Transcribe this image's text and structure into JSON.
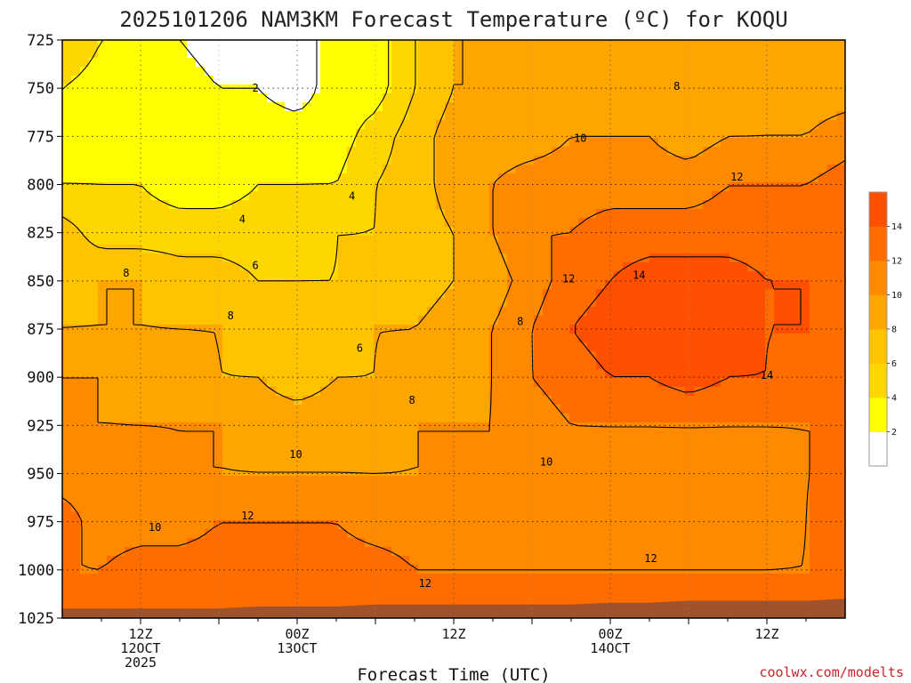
{
  "chart_data": {
    "type": "heatmap",
    "title": "2025101206 NAM3KM Forecast Temperature (ºC) for KOQU",
    "xlabel": "Forecast Time (UTC)",
    "ylabel": "",
    "credit": "coolwx.com/modelts",
    "y_levels": [
      725,
      750,
      775,
      800,
      825,
      850,
      875,
      900,
      925,
      950,
      975,
      1000,
      1025
    ],
    "y_ticks": [
      "725",
      "750",
      "775",
      "800",
      "825",
      "850",
      "875",
      "900",
      "925",
      "950",
      "975",
      "1000",
      "1025"
    ],
    "ylim": [
      725,
      1025
    ],
    "xlim_hours": [
      0,
      60
    ],
    "x_ticks": [
      {
        "hour": 6,
        "line1": "12Z",
        "line2": "12OCT",
        "line3": "2025"
      },
      {
        "hour": 18,
        "line1": "00Z",
        "line2": "13OCT",
        "line3": ""
      },
      {
        "hour": 30,
        "line1": "12Z",
        "line2": "",
        "line3": ""
      },
      {
        "hour": 42,
        "line1": "00Z",
        "line2": "14OCT",
        "line3": ""
      },
      {
        "hour": 54,
        "line1": "12Z",
        "line2": "",
        "line3": ""
      }
    ],
    "grid": true,
    "legend_position": "right",
    "levels": [
      0,
      2,
      4,
      6,
      8,
      10,
      12,
      14,
      16
    ],
    "colorbar_labels": [
      "2",
      "4",
      "6",
      "8",
      "10",
      "12",
      "14"
    ],
    "colors": [
      "#ffffff",
      "#ffff00",
      "#ffd700",
      "#ffc400",
      "#ffa500",
      "#ff8a00",
      "#ff6d00",
      "#ff4f00"
    ],
    "terrain_color": "#a0522d",
    "forecast_hours": [
      0,
      3,
      6,
      9,
      12,
      15,
      18,
      21,
      24,
      27,
      30,
      33,
      36,
      39,
      42,
      45,
      48,
      51,
      54,
      57,
      60
    ],
    "temperature_grid": [
      [
        6,
        4,
        3,
        2,
        1,
        1,
        1,
        3,
        3,
        6,
        8,
        8,
        8,
        9,
        9,
        8,
        8,
        8,
        8,
        8,
        9
      ],
      [
        4,
        3,
        3,
        3,
        2,
        2,
        1,
        3,
        3,
        6,
        8,
        8,
        9,
        9,
        9,
        9,
        8,
        8,
        9,
        9,
        9
      ],
      [
        3,
        3,
        3,
        3,
        3,
        3,
        3,
        3,
        5,
        7,
        9,
        9,
        9,
        10,
        10,
        10,
        9,
        10,
        10,
        10,
        11
      ],
      [
        4,
        4,
        4,
        3,
        3,
        4,
        4,
        4,
        6,
        7,
        9,
        10,
        11,
        11,
        11,
        11,
        11,
        12,
        12,
        12,
        13
      ],
      [
        7,
        5,
        5,
        5,
        5,
        5,
        5,
        6,
        6,
        7,
        8,
        10,
        12,
        12,
        13,
        13,
        13,
        13,
        13,
        13,
        13
      ],
      [
        7,
        8,
        8,
        7,
        7,
        6,
        6,
        6,
        7,
        7,
        8,
        9,
        11,
        13,
        14,
        15,
        15,
        15,
        14,
        14,
        14
      ],
      [
        8,
        8,
        8,
        8,
        8,
        7,
        7,
        7,
        8,
        8,
        9,
        10,
        12,
        14,
        15,
        15,
        15,
        15,
        14,
        14,
        13
      ],
      [
        10,
        10,
        9,
        9,
        8,
        8,
        7,
        8,
        8,
        9,
        9,
        10,
        12,
        13,
        14,
        14,
        15,
        14,
        14,
        13,
        13
      ],
      [
        10,
        10,
        10,
        10,
        10,
        9,
        9,
        9,
        9,
        10,
        10,
        10,
        11,
        12,
        12,
        12,
        12,
        12,
        12,
        12,
        12
      ],
      [
        11,
        11,
        11,
        10,
        10,
        10,
        10,
        10,
        10,
        10,
        10,
        10,
        11,
        11,
        11,
        11,
        11,
        11,
        11,
        12,
        12
      ],
      [
        13,
        11,
        11,
        11,
        12,
        12,
        12,
        12,
        11,
        11,
        11,
        11,
        11,
        11,
        11,
        11,
        11,
        11,
        11,
        12,
        13
      ],
      [
        12,
        12,
        13,
        13,
        13,
        13,
        13,
        13,
        13,
        12,
        12,
        12,
        12,
        12,
        12,
        12,
        12,
        12,
        12,
        12,
        13
      ],
      [
        13,
        13,
        13,
        13,
        13,
        13,
        13,
        13,
        13,
        13,
        13,
        13,
        13,
        13,
        13,
        13,
        13,
        13,
        13,
        13,
        13
      ]
    ],
    "surface_pressure": [
      1020,
      1020,
      1020,
      1020,
      1020,
      1019,
      1019,
      1019,
      1018,
      1018,
      1018,
      1018,
      1018,
      1018,
      1017,
      1017,
      1016,
      1016,
      1016,
      1016,
      1015
    ],
    "contour_labels": [
      {
        "text": "2",
        "hour": 14.8,
        "p": 750
      },
      {
        "text": "4",
        "hour": 13.8,
        "p": 818
      },
      {
        "text": "4",
        "hour": 22.2,
        "p": 806
      },
      {
        "text": "6",
        "hour": 14.8,
        "p": 842
      },
      {
        "text": "6",
        "hour": 22.8,
        "p": 885
      },
      {
        "text": "8",
        "hour": 4.9,
        "p": 846
      },
      {
        "text": "8",
        "hour": 12.9,
        "p": 868
      },
      {
        "text": "8",
        "hour": 26.8,
        "p": 912
      },
      {
        "text": "8",
        "hour": 35.1,
        "p": 871
      },
      {
        "text": "8",
        "hour": 47.1,
        "p": 749
      },
      {
        "text": "10",
        "hour": 39.7,
        "p": 776
      },
      {
        "text": "10",
        "hour": 17.9,
        "p": 940
      },
      {
        "text": "10",
        "hour": 7.1,
        "p": 978
      },
      {
        "text": "10",
        "hour": 37.1,
        "p": 944
      },
      {
        "text": "12",
        "hour": 51.7,
        "p": 796
      },
      {
        "text": "12",
        "hour": 38.8,
        "p": 849
      },
      {
        "text": "12",
        "hour": 14.2,
        "p": 972
      },
      {
        "text": "12",
        "hour": 27.8,
        "p": 1007
      },
      {
        "text": "12",
        "hour": 45.1,
        "p": 994
      },
      {
        "text": "14",
        "hour": 44.2,
        "p": 847
      },
      {
        "text": "14",
        "hour": 54.0,
        "p": 899
      }
    ]
  }
}
